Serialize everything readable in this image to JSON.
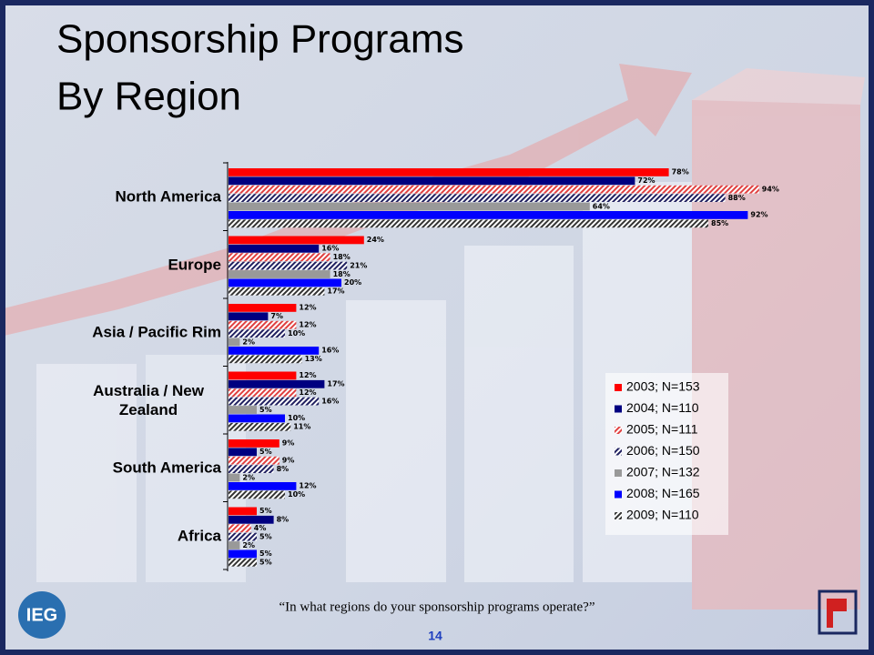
{
  "chart_data": {
    "type": "hbar",
    "title": [
      "Sponsorship Programs",
      "By Region"
    ],
    "categories": [
      "North America",
      "Europe",
      "Asia / Pacific Rim",
      "Australia / New Zealand",
      "South America",
      "Africa"
    ],
    "series": [
      {
        "name": "2003; N=153",
        "color": "#ff0000",
        "hatch": false,
        "values": [
          78,
          24,
          12,
          12,
          9,
          5
        ],
        "value_labels": [
          "78%",
          "24%",
          "12%",
          "12%",
          "9%",
          "5%"
        ]
      },
      {
        "name": "2004; N=110",
        "color": "#000080",
        "hatch": false,
        "values": [
          72,
          16,
          7,
          17,
          5,
          8
        ],
        "value_labels": [
          "72%",
          "16%",
          "7%",
          "17%",
          "5%",
          "8%"
        ]
      },
      {
        "name": "2005; N=111",
        "color": "#e04040",
        "hatch": true,
        "values": [
          94,
          18,
          12,
          12,
          9,
          4
        ],
        "value_labels": [
          "94%",
          "18%",
          "12%",
          "12%",
          "9%",
          "4%"
        ]
      },
      {
        "name": "2006; N=150",
        "color": "#202060",
        "hatch": true,
        "values": [
          88,
          21,
          10,
          16,
          8,
          5
        ],
        "value_labels": [
          "88%",
          "21%",
          "10%",
          "16%",
          "8%",
          "5%"
        ]
      },
      {
        "name": "2007; N=132",
        "color": "#999999",
        "hatch": false,
        "values": [
          64,
          18,
          2,
          5,
          2,
          2
        ],
        "value_labels": [
          "64%",
          "18%",
          "2%",
          "5%",
          "2%",
          "2%"
        ]
      },
      {
        "name": "2008; N=165",
        "color": "#0000ff",
        "hatch": false,
        "values": [
          92,
          20,
          16,
          10,
          12,
          5
        ],
        "value_labels": [
          "92%",
          "20%",
          "16%",
          "10%",
          "12%",
          "5%"
        ]
      },
      {
        "name": "2009; N=110",
        "color": "#333333",
        "hatch": true,
        "values": [
          85,
          17,
          13,
          11,
          10,
          5
        ],
        "value_labels": [
          "85%",
          "17%",
          "13%",
          "11%",
          "10%",
          "5%"
        ]
      }
    ]
  },
  "footer": {
    "question": "“In what regions do your sponsorship programs operate?”",
    "page": "14",
    "logo": "IEG"
  }
}
